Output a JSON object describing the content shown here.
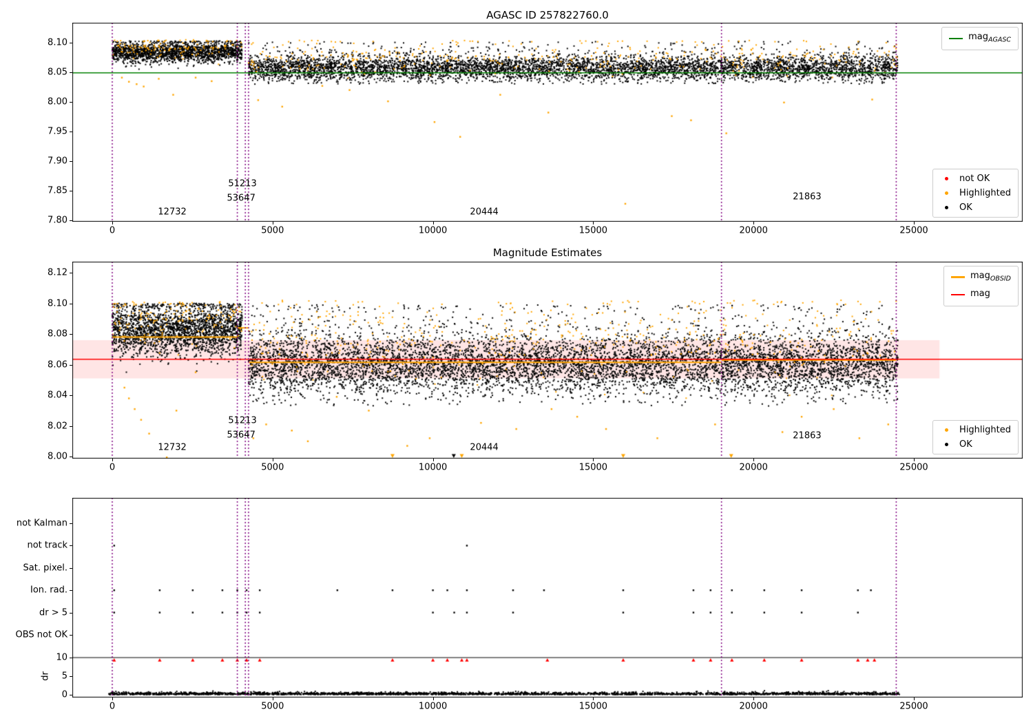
{
  "figure": {
    "background": "#ffffff"
  },
  "chart_data": [
    {
      "id": "mag-agasc-panel",
      "type": "scatter",
      "title": "AGASC ID 257822760.0",
      "xlim": [
        -1246,
        28393
      ],
      "ylim": [
        7.7977,
        8.1337
      ],
      "xticks": [
        {
          "v": 0,
          "label": "0"
        },
        {
          "v": 5000,
          "label": "5000"
        },
        {
          "v": 10000,
          "label": "10000"
        },
        {
          "v": 15000,
          "label": "15000"
        },
        {
          "v": 20000,
          "label": "20000"
        },
        {
          "v": 25000,
          "label": "25000"
        }
      ],
      "yticks": [
        {
          "v": 7.8,
          "label": "7.80"
        },
        {
          "v": 7.85,
          "label": "7.85"
        },
        {
          "v": 7.9,
          "label": "7.90"
        },
        {
          "v": 7.95,
          "label": "7.95"
        },
        {
          "v": 8.0,
          "label": "8.00"
        },
        {
          "v": 8.05,
          "label": "8.05"
        },
        {
          "v": 8.1,
          "label": "8.10"
        }
      ],
      "hline": {
        "y": 8.049,
        "color": "#008000"
      },
      "vlines": {
        "x": [
          0,
          3900,
          4150,
          4250,
          19000,
          24450
        ],
        "color": "#800080",
        "style": "dotted"
      },
      "series": [
        {
          "name": "OK",
          "color": "#000000",
          "clusters": [
            {
              "seed": 11,
              "x0": 0,
              "x1": 4050,
              "n": 1800,
              "yc": 8.083,
              "ys": 0.008,
              "ymin": 8.052,
              "ymax": 8.103,
              "spike": 0.12
            },
            {
              "seed": 12,
              "x0": 4250,
              "x1": 24500,
              "n": 5600,
              "yc": 8.056,
              "ys": 0.01,
              "ymin": 8.03,
              "ymax": 8.102,
              "spike": 0.14
            }
          ]
        },
        {
          "name": "Highlighted",
          "color": "#ffa500",
          "clusters": [
            {
              "seed": 13,
              "x0": 0,
              "x1": 4050,
              "n": 130,
              "yc": 8.089,
              "ys": 0.007,
              "ymin": 8.058,
              "ymax": 8.105,
              "spike": 0.3
            },
            {
              "seed": 14,
              "x0": 4250,
              "x1": 24500,
              "n": 380,
              "yc": 8.071,
              "ys": 0.012,
              "ymin": 8.034,
              "ymax": 8.104,
              "spike": 0.3
            }
          ],
          "points": [
            [
              300,
              8.041
            ],
            [
              520,
              8.034
            ],
            [
              760,
              8.03
            ],
            [
              980,
              8.026
            ],
            [
              1450,
              8.039
            ],
            [
              1900,
              8.012
            ],
            [
              2600,
              8.041
            ],
            [
              3100,
              8.035
            ],
            [
              4550,
              8.003
            ],
            [
              5300,
              7.992
            ],
            [
              6550,
              8.027
            ],
            [
              7400,
              8.02
            ],
            [
              8600,
              8.001
            ],
            [
              10050,
              7.966
            ],
            [
              10850,
              7.941
            ],
            [
              12100,
              8.012
            ],
            [
              13600,
              7.982
            ],
            [
              16000,
              7.828
            ],
            [
              17450,
              7.976
            ],
            [
              18050,
              7.969
            ],
            [
              19150,
              7.947
            ],
            [
              20950,
              7.999
            ],
            [
              23700,
              8.004
            ]
          ]
        }
      ],
      "annotations": [
        {
          "text": "12732",
          "x": 1870,
          "y": 7.814
        },
        {
          "text": "51213",
          "x": 4060,
          "y": 7.862
        },
        {
          "text": "53647",
          "x": 4020,
          "y": 7.837
        },
        {
          "text": "20444",
          "x": 11600,
          "y": 7.814
        },
        {
          "text": "21863",
          "x": 21670,
          "y": 7.839
        }
      ],
      "legends": {
        "line": {
          "main": "mag",
          "sub": "AGASC",
          "color": "#008000"
        },
        "points": [
          {
            "label": "not OK",
            "color": "#ff0000"
          },
          {
            "label": "Highlighted",
            "color": "#ffa500"
          },
          {
            "label": "OK",
            "color": "#000000"
          }
        ]
      }
    },
    {
      "id": "mag-estimates-panel",
      "type": "scatter",
      "title": "Magnitude Estimates",
      "xlim": [
        -1246,
        28393
      ],
      "ylim": [
        7.9987,
        8.1272
      ],
      "xticks": [
        {
          "v": 0,
          "label": "0"
        },
        {
          "v": 5000,
          "label": "5000"
        },
        {
          "v": 10000,
          "label": "10000"
        },
        {
          "v": 15000,
          "label": "15000"
        },
        {
          "v": 20000,
          "label": "20000"
        },
        {
          "v": 25000,
          "label": "25000"
        }
      ],
      "yticks": [
        {
          "v": 8.0,
          "label": "8.00"
        },
        {
          "v": 8.02,
          "label": "8.02"
        },
        {
          "v": 8.04,
          "label": "8.04"
        },
        {
          "v": 8.06,
          "label": "8.06"
        },
        {
          "v": 8.08,
          "label": "8.08"
        },
        {
          "v": 8.1,
          "label": "8.10"
        },
        {
          "v": 8.12,
          "label": "8.12"
        }
      ],
      "hline": {
        "y": 8.0635,
        "color": "#ff0000"
      },
      "band": {
        "x0": -1246,
        "x1": 25800,
        "y0": 8.051,
        "y1": 8.076,
        "color": "rgba(255,0,0,0.10)"
      },
      "steps_color": "#ffa500",
      "steps": [
        {
          "x0": 0,
          "x1": 3900,
          "y": 8.078
        },
        {
          "x0": 3900,
          "x1": 4250,
          "y": 8.084
        },
        {
          "x0": 4250,
          "x1": 19000,
          "y": 8.0615
        },
        {
          "x0": 19000,
          "x1": 24450,
          "y": 8.063
        }
      ],
      "vlines": {
        "x": [
          0,
          3900,
          4150,
          4250,
          19000,
          24450
        ],
        "color": "#800080",
        "style": "dotted"
      },
      "series": [
        {
          "name": "OK",
          "color": "#000000",
          "clusters": [
            {
              "seed": 21,
              "x0": 0,
              "x1": 4050,
              "n": 2300,
              "yc": 8.082,
              "ys": 0.008,
              "ymin": 8.05,
              "ymax": 8.1,
              "spike": 0.12
            },
            {
              "seed": 22,
              "x0": 4250,
              "x1": 24500,
              "n": 7200,
              "yc": 8.059,
              "ys": 0.0095,
              "ymin": 8.033,
              "ymax": 8.099,
              "spike": 0.14
            }
          ]
        },
        {
          "name": "Highlighted",
          "color": "#ffa500",
          "clusters": [
            {
              "seed": 23,
              "x0": 0,
              "x1": 4050,
              "n": 160,
              "yc": 8.088,
              "ys": 0.008,
              "ymin": 8.056,
              "ymax": 8.101,
              "spike": 0.3
            },
            {
              "seed": 24,
              "x0": 4250,
              "x1": 24500,
              "n": 520,
              "yc": 8.074,
              "ys": 0.012,
              "ymin": 8.038,
              "ymax": 8.102,
              "spike": 0.3
            }
          ],
          "points": [
            [
              380,
              8.045
            ],
            [
              520,
              8.038
            ],
            [
              700,
              8.031
            ],
            [
              900,
              8.024
            ],
            [
              1150,
              8.015
            ],
            [
              1700,
              7.9995
            ],
            [
              2000,
              8.03
            ],
            [
              2600,
              8.055
            ],
            [
              4400,
              8.012
            ],
            [
              4800,
              8.021
            ],
            [
              5600,
              8.017
            ],
            [
              6100,
              8.01
            ],
            [
              7000,
              8.039
            ],
            [
              8000,
              8.03
            ],
            [
              9200,
              8.007
            ],
            [
              9900,
              8.012
            ],
            [
              11500,
              8.022
            ],
            [
              12600,
              8.018
            ],
            [
              13700,
              8.031
            ],
            [
              14500,
              8.026
            ],
            [
              15400,
              8.018
            ],
            [
              17000,
              8.012
            ],
            [
              18800,
              8.021
            ],
            [
              20900,
              8.016
            ],
            [
              21500,
              8.026
            ],
            [
              22500,
              8.031
            ],
            [
              23300,
              8.012
            ],
            [
              24200,
              8.021
            ]
          ]
        }
      ],
      "clip_markers": [
        {
          "color": "#ffa500",
          "y": 8.0005,
          "x": [
            8740,
            10900,
            15935,
            19303
          ]
        },
        {
          "color": "#000000",
          "y": 8.0005,
          "x": [
            10650
          ]
        }
      ],
      "annotations": [
        {
          "text": "12732",
          "x": 1870,
          "y": 8.006
        },
        {
          "text": "51213",
          "x": 4060,
          "y": 8.0235
        },
        {
          "text": "53647",
          "x": 4020,
          "y": 8.014
        },
        {
          "text": "20444",
          "x": 11600,
          "y": 8.006
        },
        {
          "text": "21863",
          "x": 21670,
          "y": 8.0135
        }
      ],
      "legends": {
        "lines": [
          {
            "main": "mag",
            "sub": "OBSID",
            "color": "#ffa500"
          },
          {
            "main": "mag",
            "sub": "",
            "color": "#ff0000"
          }
        ],
        "points": [
          {
            "label": "Highlighted",
            "color": "#ffa500"
          },
          {
            "label": "OK",
            "color": "#000000"
          }
        ]
      }
    },
    {
      "id": "flags-dr-panel",
      "type": "scatter",
      "xlim": [
        -1246,
        28393
      ],
      "xticks": [
        {
          "v": 0,
          "label": "0"
        },
        {
          "v": 5000,
          "label": "5000"
        },
        {
          "v": 10000,
          "label": "10000"
        },
        {
          "v": 15000,
          "label": "15000"
        },
        {
          "v": 20000,
          "label": "20000"
        },
        {
          "v": 25000,
          "label": "25000"
        }
      ],
      "categories": [
        "not Kalman",
        "not track",
        "Sat. pixel.",
        "Ion. rad.",
        "dr > 5",
        "OBS not OK"
      ],
      "category_points": {
        "not Kalman": [],
        "not track": [
          60,
          11060
        ],
        "Sat. pixel.": [],
        "Ion. rad.": [
          60,
          1480,
          2510,
          3435,
          3900,
          4190,
          4600,
          7020,
          8740,
          10000,
          10450,
          11060,
          12500,
          13465,
          15935,
          18125,
          18660,
          19325,
          20335,
          21500,
          23255,
          23660
        ],
        "dr > 5": [
          60,
          1480,
          2510,
          3435,
          3900,
          4190,
          4600,
          10000,
          10665,
          11060,
          12500,
          15935,
          18125,
          18660,
          19325,
          20335,
          21500,
          23255
        ],
        "OBS not OK": []
      },
      "dr_axis": {
        "label": "dr",
        "ticks": [
          {
            "v": 0,
            "label": "0"
          },
          {
            "v": 5,
            "label": "5"
          },
          {
            "v": 10,
            "label": "10"
          }
        ],
        "hline": 10,
        "triangles": {
          "color": "#ff0000",
          "y": 9.3,
          "x": [
            60,
            1480,
            2510,
            3435,
            3900,
            4190,
            4600,
            8740,
            10000,
            10450,
            10900,
            11060,
            13570,
            15935,
            18125,
            18660,
            19325,
            20335,
            21500,
            23255,
            23560,
            23770
          ]
        },
        "baseline": {
          "seed": 31,
          "x0": -100,
          "x1": 24550,
          "n": 2600,
          "yc": 0.05,
          "ys": 0.3,
          "ymin": 0.02,
          "ymax": 1.9,
          "abs": true,
          "color": "#000000"
        }
      },
      "vlines": {
        "x": [
          0,
          3900,
          4150,
          4250,
          19000,
          24450
        ],
        "color": "#800080",
        "style": "dotted"
      }
    }
  ]
}
